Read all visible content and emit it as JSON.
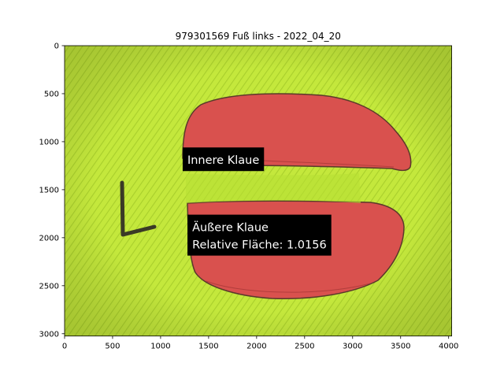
{
  "chart_data": {
    "type": "image",
    "title": "979301569 Fuß links - 2022_04_20",
    "xlim": [
      0,
      4032
    ],
    "ylim": [
      3024,
      0
    ],
    "xticks": [
      0,
      500,
      1000,
      1500,
      2000,
      2500,
      3000,
      3500,
      4000
    ],
    "yticks": [
      0,
      500,
      1000,
      1500,
      2000,
      2500,
      3000
    ],
    "annotations": [
      {
        "lines": [
          "Innere Klaue"
        ],
        "x": 1230,
        "y": 1060
      },
      {
        "lines": [
          "Äußere Klaue",
          "Relative Fläche: 1.0156"
        ],
        "x": 1280,
        "y": 1760
      }
    ],
    "marker_letter": "L",
    "colors": {
      "background": "#c2e63a",
      "segment_fill": "#d9514e",
      "label_box": "#000000",
      "label_text": "#ffffff"
    }
  }
}
